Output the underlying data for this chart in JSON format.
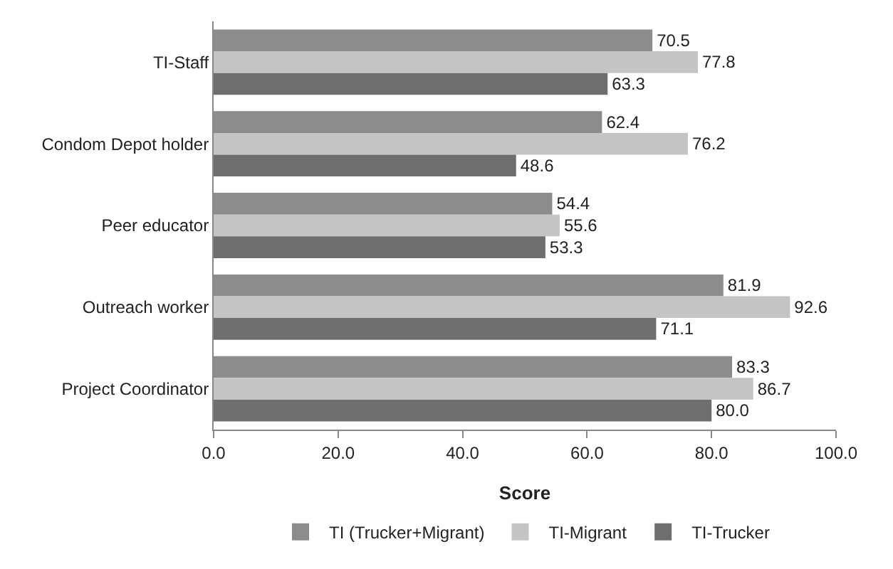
{
  "chart_data": {
    "type": "bar",
    "orientation": "horizontal",
    "xlabel": "Score",
    "categories": [
      "TI-Staff",
      "Condom Depot holder",
      "Peer educator",
      "Outreach worker",
      "Project Coordinator"
    ],
    "series": [
      {
        "name": "TI (Trucker+Migrant)",
        "color": "#8c8c8c",
        "values": [
          70.5,
          62.4,
          54.4,
          81.9,
          83.3
        ],
        "value_labels": [
          "70.5",
          "62.4",
          "54.4",
          "81.9",
          "83.3"
        ]
      },
      {
        "name": "TI-Migrant",
        "color": "#c4c4c4",
        "values": [
          77.8,
          76.2,
          55.6,
          92.6,
          86.7
        ],
        "value_labels": [
          "77.8",
          "76.2",
          "55.6",
          "92.6",
          "86.7"
        ]
      },
      {
        "name": "TI-Trucker",
        "color": "#6e6e6e",
        "values": [
          63.3,
          48.6,
          53.3,
          71.1,
          80.0
        ],
        "value_labels": [
          "63.3",
          "48.6",
          "53.3",
          "71.1",
          "80.0"
        ]
      }
    ],
    "xlim": [
      0,
      100
    ],
    "xticks": [
      {
        "value": 0,
        "label": "0.0"
      },
      {
        "value": 20,
        "label": "20.0"
      },
      {
        "value": 40,
        "label": "40.0"
      },
      {
        "value": 60,
        "label": "60.0"
      },
      {
        "value": 80,
        "label": "80.0"
      },
      {
        "value": 100,
        "label": "100.0"
      }
    ],
    "legend": "bottom"
  }
}
